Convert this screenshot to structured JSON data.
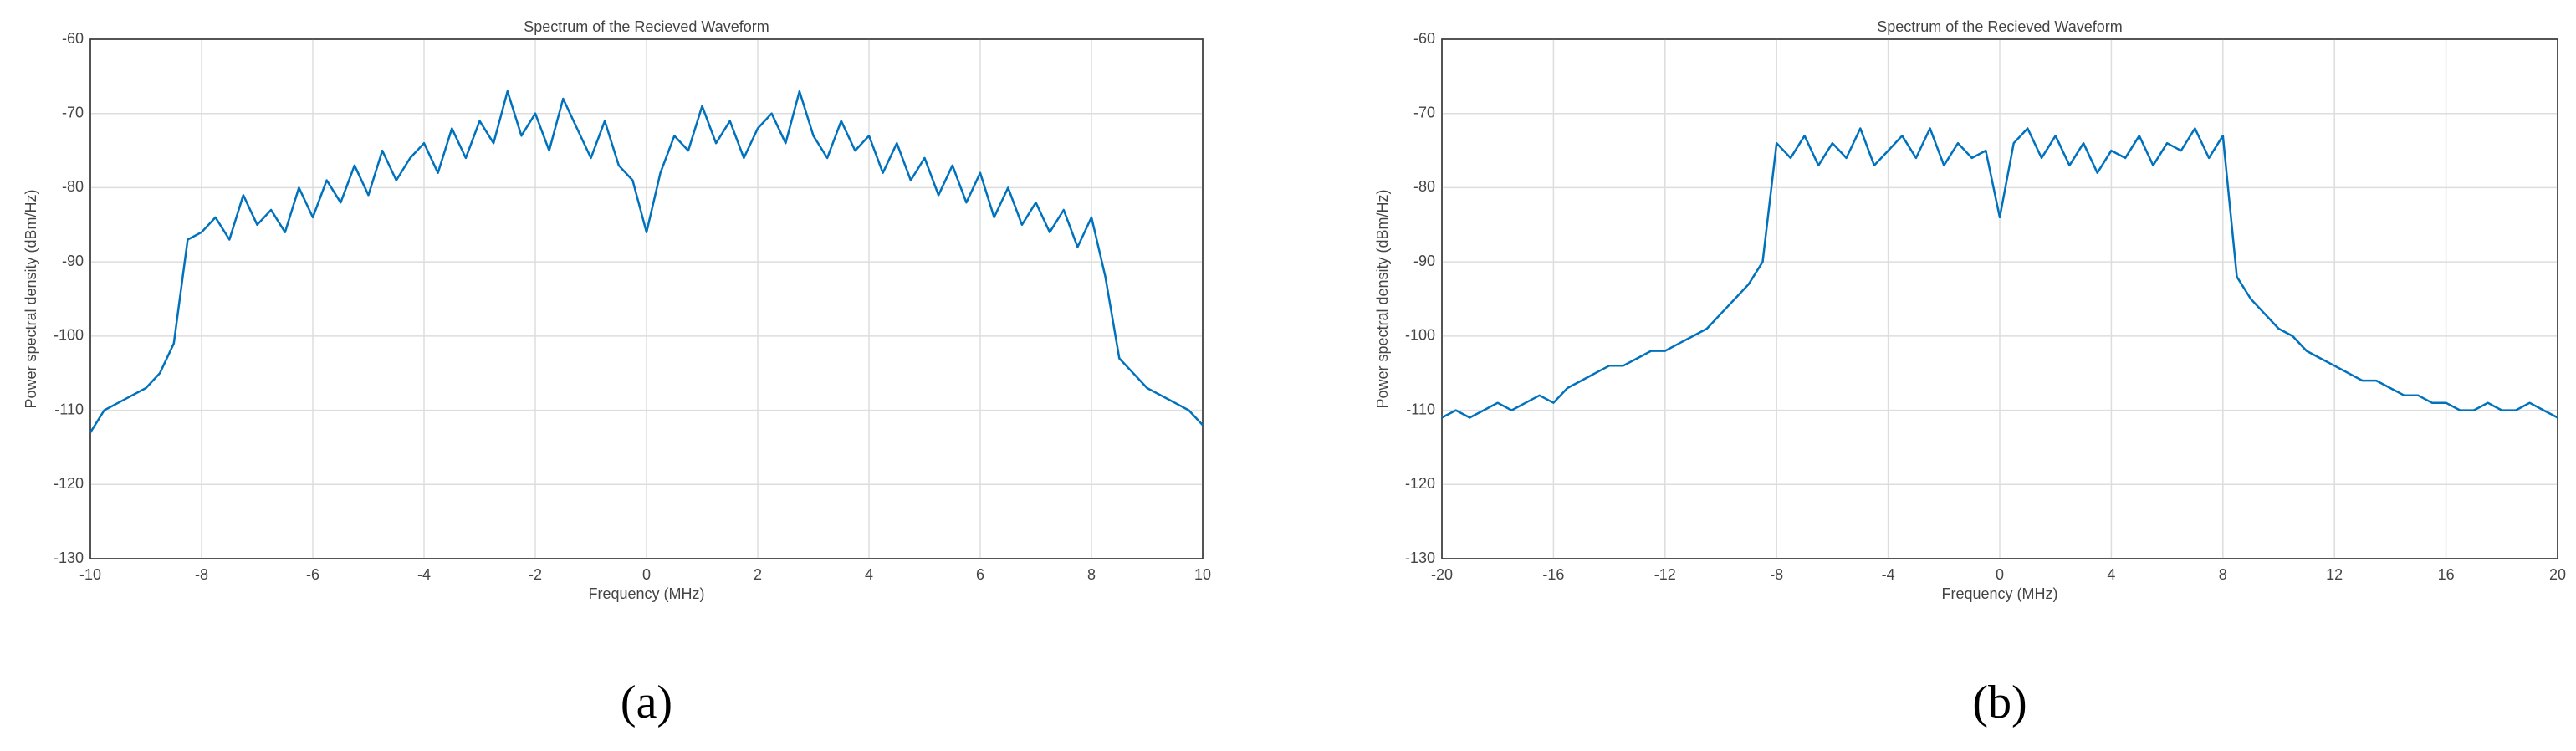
{
  "chart_data": [
    {
      "type": "line",
      "title": "Spectrum of the Recieved Waveform",
      "x_label": "Frequency (MHz)",
      "y_label": "Power spectral density (dBm/Hz)",
      "caption": "(a)",
      "xlim": [
        -10,
        10
      ],
      "xticks": [
        -10,
        -8,
        -6,
        -4,
        -2,
        0,
        2,
        4,
        6,
        8,
        10
      ],
      "ylim": [
        -130,
        -60
      ],
      "yticks": [
        -130,
        -120,
        -110,
        -100,
        -90,
        -80,
        -70,
        -60
      ],
      "grid": true,
      "x": [
        -10,
        -9.75,
        -9.5,
        -9.25,
        -9,
        -8.75,
        -8.5,
        -8.25,
        -8,
        -7.75,
        -7.5,
        -7.25,
        -7,
        -6.75,
        -6.5,
        -6.25,
        -6,
        -5.75,
        -5.5,
        -5.25,
        -5,
        -4.75,
        -4.5,
        -4.25,
        -4,
        -3.75,
        -3.5,
        -3.25,
        -3,
        -2.75,
        -2.5,
        -2.25,
        -2,
        -1.75,
        -1.5,
        -1.25,
        -1,
        -0.75,
        -0.5,
        -0.25,
        0,
        0.25,
        0.5,
        0.75,
        1,
        1.25,
        1.5,
        1.75,
        2,
        2.25,
        2.5,
        2.75,
        3,
        3.25,
        3.5,
        3.75,
        4,
        4.25,
        4.5,
        4.75,
        5,
        5.25,
        5.5,
        5.75,
        6,
        6.25,
        6.5,
        6.75,
        7,
        7.25,
        7.5,
        7.75,
        8,
        8.25,
        8.5,
        8.75,
        9,
        9.25,
        9.5,
        9.75,
        10
      ],
      "series": [
        {
          "color": "#0072bd",
          "values": [
            -113,
            -110,
            -109,
            -108,
            -107,
            -105,
            -101,
            -87,
            -86,
            -84,
            -87,
            -81,
            -85,
            -83,
            -86,
            -80,
            -84,
            -79,
            -82,
            -77,
            -81,
            -75,
            -79,
            -76,
            -74,
            -78,
            -72,
            -76,
            -71,
            -74,
            -67,
            -73,
            -70,
            -75,
            -68,
            -72,
            -76,
            -71,
            -77,
            -79,
            -86,
            -78,
            -73,
            -75,
            -69,
            -74,
            -71,
            -76,
            -72,
            -70,
            -74,
            -67,
            -73,
            -76,
            -71,
            -75,
            -73,
            -78,
            -74,
            -79,
            -76,
            -81,
            -77,
            -82,
            -78,
            -84,
            -80,
            -85,
            -82,
            -86,
            -83,
            -88,
            -84,
            -92,
            -103,
            -105,
            -107,
            -108,
            -109,
            -110,
            -112
          ]
        }
      ]
    },
    {
      "type": "line",
      "title": "Spectrum of the Recieved Waveform",
      "x_label": "Frequency (MHz)",
      "y_label": "Power spectral density (dBm/Hz)",
      "caption": "(b)",
      "xlim": [
        -20,
        20
      ],
      "xticks": [
        -20,
        -16,
        -12,
        -8,
        -4,
        0,
        4,
        8,
        12,
        16,
        20
      ],
      "ylim": [
        -130,
        -60
      ],
      "yticks": [
        -130,
        -120,
        -110,
        -100,
        -90,
        -80,
        -70,
        -60
      ],
      "grid": true,
      "x": [
        -20,
        -19.5,
        -19,
        -18.5,
        -18,
        -17.5,
        -17,
        -16.5,
        -16,
        -15.5,
        -15,
        -14.5,
        -14,
        -13.5,
        -13,
        -12.5,
        -12,
        -11.5,
        -11,
        -10.5,
        -10,
        -9.5,
        -9,
        -8.5,
        -8,
        -7.5,
        -7,
        -6.5,
        -6,
        -5.5,
        -5,
        -4.5,
        -4,
        -3.5,
        -3,
        -2.5,
        -2,
        -1.5,
        -1,
        -0.5,
        0,
        0.5,
        1,
        1.5,
        2,
        2.5,
        3,
        3.5,
        4,
        4.5,
        5,
        5.5,
        6,
        6.5,
        7,
        7.5,
        8,
        8.5,
        9,
        9.5,
        10,
        10.5,
        11,
        11.5,
        12,
        12.5,
        13,
        13.5,
        14,
        14.5,
        15,
        15.5,
        16,
        16.5,
        17,
        17.5,
        18,
        18.5,
        19,
        19.5,
        20
      ],
      "series": [
        {
          "color": "#0072bd",
          "values": [
            -111,
            -110,
            -111,
            -110,
            -109,
            -110,
            -109,
            -108,
            -109,
            -107,
            -106,
            -105,
            -104,
            -104,
            -103,
            -102,
            -102,
            -101,
            -100,
            -99,
            -97,
            -95,
            -93,
            -90,
            -74,
            -76,
            -73,
            -77,
            -74,
            -76,
            -72,
            -77,
            -75,
            -73,
            -76,
            -72,
            -77,
            -74,
            -76,
            -75,
            -84,
            -74,
            -72,
            -76,
            -73,
            -77,
            -74,
            -78,
            -75,
            -76,
            -73,
            -77,
            -74,
            -75,
            -72,
            -76,
            -73,
            -92,
            -95,
            -97,
            -99,
            -100,
            -102,
            -103,
            -104,
            -105,
            -106,
            -106,
            -107,
            -108,
            -108,
            -109,
            -109,
            -110,
            -110,
            -109,
            -110,
            -110,
            -109,
            -110,
            -111
          ]
        }
      ]
    }
  ]
}
